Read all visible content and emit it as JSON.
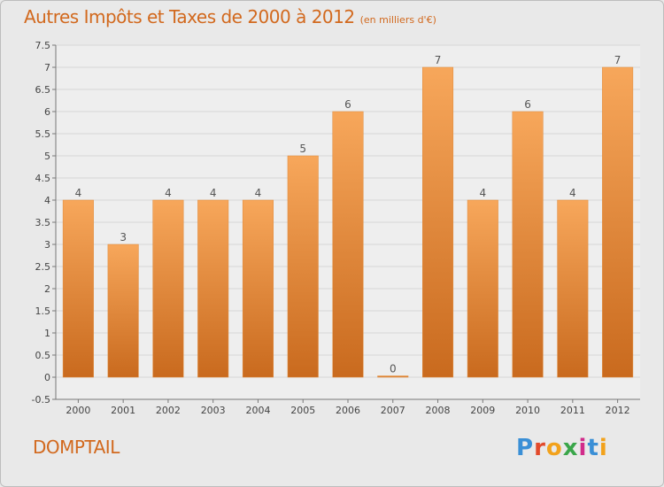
{
  "title": "Autres Impôts et Taxes de 2000 à 2012",
  "subtitle": "(en milliers d'€)",
  "place": "DOMPTAIL",
  "logo": {
    "text": "Proxiti",
    "colors": [
      "#3a8fd6",
      "#e24a2b",
      "#f2a21c",
      "#3aa64a",
      "#d12b8a",
      "#3a8fd6",
      "#f2a21c"
    ]
  },
  "colors": {
    "bar_light": "#f7a75b",
    "bar_dark": "#c96a1e",
    "accent": "#d2691e"
  },
  "chart_data": {
    "type": "bar",
    "title": "Autres Impôts et Taxes de 2000 à 2012",
    "subtitle": "(en milliers d'€)",
    "categories": [
      "2000",
      "2001",
      "2002",
      "2003",
      "2004",
      "2005",
      "2006",
      "2007",
      "2008",
      "2009",
      "2010",
      "2011",
      "2012"
    ],
    "values": [
      4,
      3,
      4,
      4,
      4,
      5,
      6,
      0,
      7,
      4,
      6,
      4,
      7
    ],
    "value_labels": [
      "4",
      "3",
      "4",
      "4",
      "4",
      "5",
      "6",
      "0",
      "7",
      "4",
      "6",
      "4",
      "7"
    ],
    "yticks": [
      "-0.5",
      "0",
      "0.5",
      "1",
      "1.5",
      "2",
      "2.5",
      "3",
      "3.5",
      "4",
      "4.5",
      "5",
      "5.5",
      "6",
      "6.5",
      "7",
      "7.5"
    ],
    "ylim": [
      -0.5,
      7.5
    ],
    "grid": true
  }
}
